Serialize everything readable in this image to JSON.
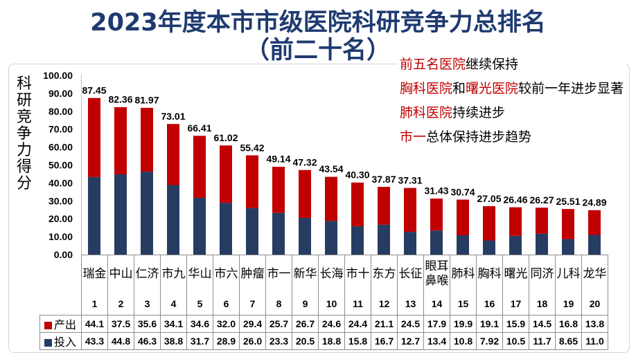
{
  "theme": {
    "title_color": "#1e3a70"
  },
  "annotations": [
    [
      {
        "text": "前五名医院",
        "color": "#c00000"
      },
      {
        "text": "继续保持",
        "color": "#000000"
      }
    ],
    [
      {
        "text": "胸科医院",
        "color": "#c00000"
      },
      {
        "text": "和",
        "color": "#000000"
      },
      {
        "text": "曙光医院",
        "color": "#c00000"
      },
      {
        "text": "较前一年进步显著",
        "color": "#000000"
      }
    ],
    [
      {
        "text": "肺科医院",
        "color": "#c00000"
      },
      {
        "text": "持续进步",
        "color": "#000000"
      }
    ],
    [
      {
        "text": "市一",
        "color": "#c00000"
      },
      {
        "text": "总体保持进步趋势",
        "color": "#000000"
      }
    ]
  ],
  "chart_data": {
    "type": "bar",
    "stacked": true,
    "title": "2023年度本市市级医院科研竞争力总排名",
    "subtitle": "（前二十名）",
    "ylabel": "科研竞争力得分",
    "ylim": [
      0,
      100
    ],
    "yticks": [
      "0.00",
      "10.00",
      "20.00",
      "30.00",
      "40.00",
      "50.00",
      "60.00",
      "70.00",
      "80.00",
      "90.00",
      "100.00"
    ],
    "grid": false,
    "legend_placement": "data table, left column",
    "categories": [
      "瑞金",
      "中山",
      "仁济",
      "市九",
      "华山",
      "市六",
      "肿瘤",
      "市一",
      "新华",
      "长海",
      "市十",
      "东方",
      "长征",
      "眼耳鼻喉",
      "肺科",
      "胸科",
      "曙光",
      "同济",
      "儿科",
      "龙华"
    ],
    "ranks": [
      "1",
      "2",
      "3",
      "4",
      "5",
      "6",
      "7",
      "8",
      "9",
      "10",
      "11",
      "12",
      "13",
      "14",
      "15",
      "16",
      "17",
      "18",
      "19",
      "20"
    ],
    "series": [
      {
        "name": "产出",
        "color": "#c00000",
        "values": [
          44.1,
          37.5,
          35.6,
          34.1,
          34.6,
          32.0,
          29.4,
          25.7,
          26.7,
          24.6,
          24.4,
          21.1,
          24.5,
          17.9,
          19.9,
          19.1,
          15.9,
          14.5,
          16.8,
          13.8
        ],
        "value_labels": [
          "44.1",
          "37.5",
          "35.6",
          "34.1",
          "34.6",
          "32.0",
          "29.4",
          "25.7",
          "26.7",
          "24.6",
          "24.4",
          "21.1",
          "24.5",
          "17.9",
          "19.9",
          "19.1",
          "15.9",
          "14.5",
          "16.8",
          "13.8"
        ]
      },
      {
        "name": "投入",
        "color": "#273c63",
        "values": [
          43.3,
          44.8,
          46.3,
          38.8,
          31.7,
          28.9,
          26.0,
          23.3,
          20.5,
          18.8,
          15.8,
          16.7,
          12.7,
          13.4,
          10.8,
          7.92,
          10.5,
          11.7,
          8.65,
          11.0
        ],
        "value_labels": [
          "43.3",
          "44.8",
          "46.3",
          "38.8",
          "31.7",
          "28.9",
          "26.0",
          "23.3",
          "20.5",
          "18.8",
          "15.8",
          "16.7",
          "12.7",
          "13.4",
          "10.8",
          "7.92",
          "10.5",
          "11.7",
          "8.65",
          "11.0"
        ]
      }
    ],
    "totals": [
      "87.45",
      "82.36",
      "81.97",
      "73.01",
      "66.41",
      "61.02",
      "55.42",
      "49.14",
      "47.32",
      "43.54",
      "40.30",
      "37.87",
      "37.31",
      "31.43",
      "30.74",
      "27.05",
      "26.46",
      "26.27",
      "25.51",
      "24.89"
    ]
  }
}
